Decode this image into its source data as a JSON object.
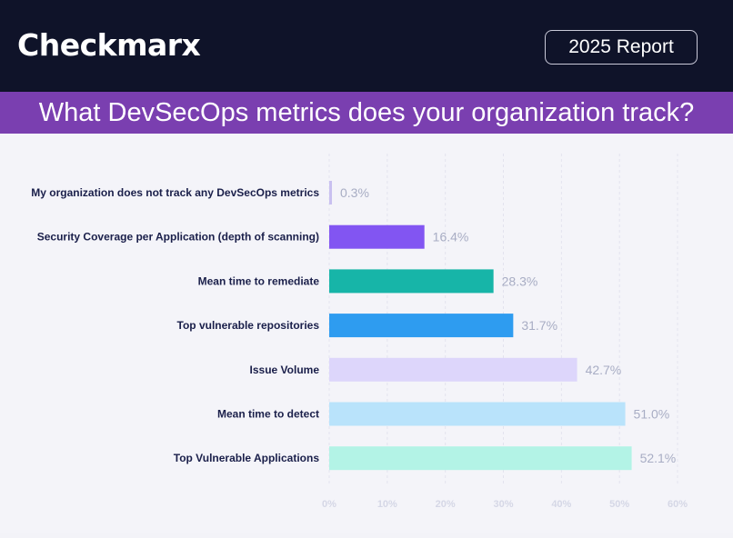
{
  "header": {
    "logo_text": "Checkmarx",
    "badge_label": "2025 Report"
  },
  "title": "What DevSecOps metrics does your organization track?",
  "chart_data": {
    "type": "bar",
    "orientation": "horizontal",
    "title": "What DevSecOps metrics does your organization track?",
    "categories": [
      "My organization does not track any DevSecOps metrics",
      "Security Coverage per Application (depth of scanning)",
      "Mean time to remediate",
      "Top vulnerable repositories",
      "Issue Volume",
      "Mean time to detect",
      "Top Vulnerable Applications"
    ],
    "values": [
      0.3,
      16.4,
      28.3,
      31.7,
      42.7,
      51.0,
      52.1
    ],
    "value_labels": [
      "0.3%",
      "16.4%",
      "28.3%",
      "31.7%",
      "42.7%",
      "51.0%",
      "52.1%"
    ],
    "colors": [
      "#c9c0f0",
      "#8255f2",
      "#17b5a8",
      "#2e9cf0",
      "#ddd6fb",
      "#b9e3fb",
      "#b3f3e6"
    ],
    "xticks": [
      "0%",
      "10%",
      "20%",
      "30%",
      "40%",
      "50%",
      "60%"
    ],
    "xlim": [
      0,
      60
    ],
    "grid": "vertical dashed"
  }
}
